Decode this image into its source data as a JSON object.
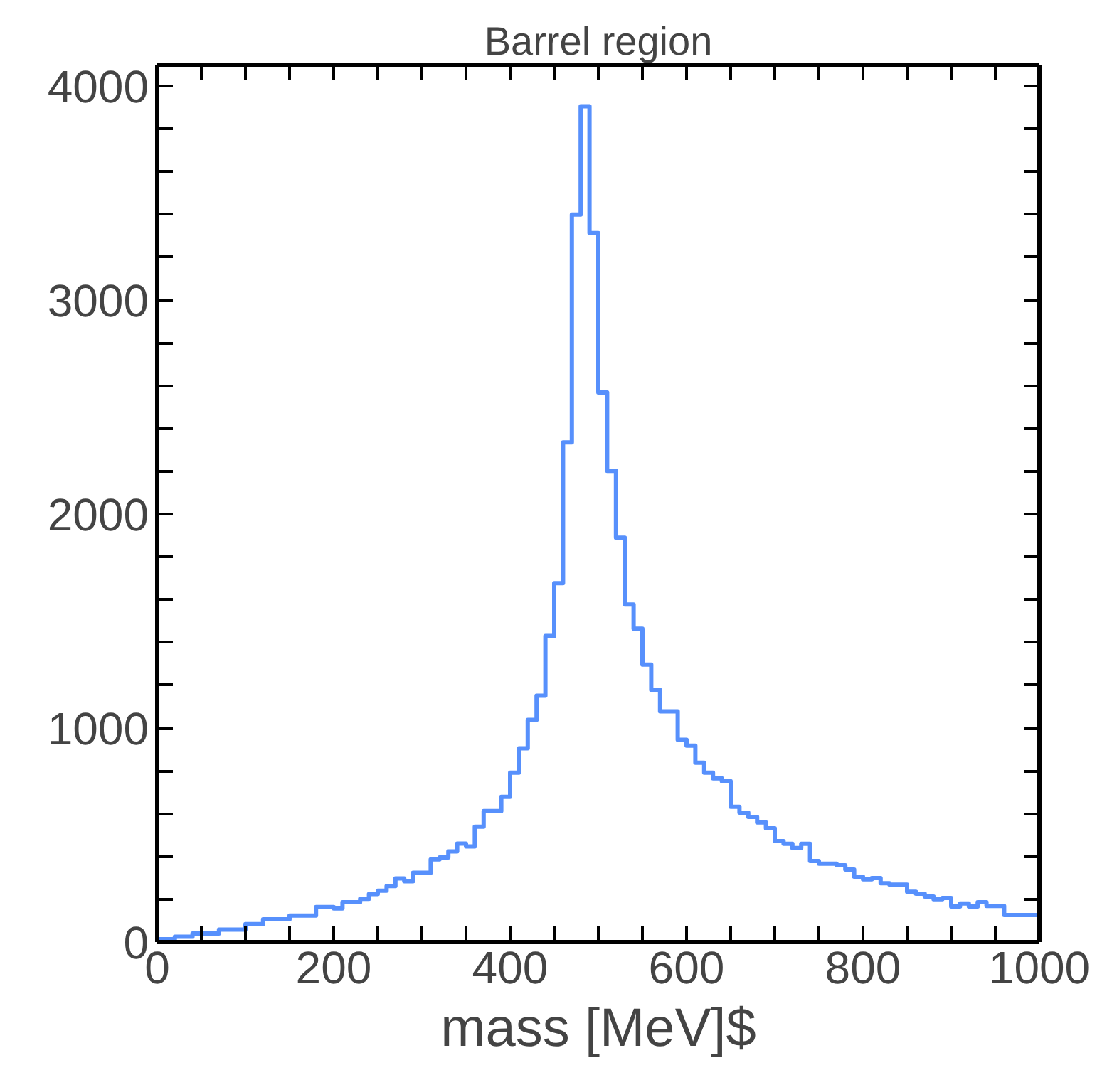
{
  "chart_data": {
    "type": "histogram",
    "title": "Barrel region",
    "xlabel": "mass [MeV]$",
    "bins": [
      0,
      10,
      20,
      30,
      40,
      50,
      60,
      70,
      80,
      90,
      100,
      110,
      120,
      130,
      140,
      150,
      160,
      170,
      180,
      190,
      200,
      210,
      220,
      230,
      240,
      250,
      260,
      270,
      280,
      290,
      300,
      310,
      320,
      330,
      340,
      350,
      360,
      370,
      380,
      390,
      400,
      410,
      420,
      430,
      440,
      450,
      460,
      470,
      480,
      490,
      500,
      510,
      520,
      530,
      540,
      550,
      560,
      570,
      580,
      590,
      600,
      610,
      620,
      630,
      640,
      650,
      660,
      670,
      680,
      690,
      700,
      710,
      720,
      730,
      740,
      750,
      760,
      770,
      780,
      790,
      800,
      810,
      820,
      830,
      840,
      850,
      860,
      870,
      880,
      890,
      900,
      910,
      920,
      930,
      940,
      950,
      960,
      970,
      980,
      990,
      1000
    ],
    "values": [
      13,
      13,
      25,
      25,
      40,
      40,
      40,
      58,
      58,
      58,
      84,
      84,
      106,
      106,
      106,
      124,
      124,
      124,
      164,
      164,
      157,
      186,
      186,
      202,
      224,
      240,
      262,
      297,
      284,
      324,
      324,
      386,
      395,
      424,
      460,
      447,
      539,
      612,
      612,
      679,
      792,
      905,
      1038,
      1151,
      1430,
      1677,
      2335,
      3400,
      3906,
      3313,
      2568,
      2202,
      1890,
      1577,
      1464,
      1297,
      1178,
      1078,
      1078,
      945,
      918,
      838,
      792,
      765,
      752,
      632,
      605,
      585,
      559,
      532,
      472,
      459,
      439,
      459,
      379,
      366,
      366,
      359,
      339,
      306,
      293,
      299,
      275,
      268,
      268,
      235,
      226,
      213,
      200,
      206,
      166,
      180,
      166,
      186,
      169,
      169,
      126,
      126,
      126,
      126
    ],
    "color": "#5790fc",
    "xlim": [
      0,
      1000
    ],
    "ylim": [
      0,
      4100
    ],
    "xticks": [
      0,
      {
        "value": 50,
        "label": null
      },
      {
        "value": 100,
        "label": null
      },
      {
        "value": 150,
        "label": null
      },
      200,
      {
        "value": 250,
        "label": null
      },
      {
        "value": 300,
        "label": null
      },
      {
        "value": 350,
        "label": null
      },
      400,
      {
        "value": 450,
        "label": null
      },
      {
        "value": 500,
        "label": null
      },
      {
        "value": 550,
        "label": null
      },
      600,
      {
        "value": 650,
        "label": null
      },
      {
        "value": 700,
        "label": null
      },
      {
        "value": 750,
        "label": null
      },
      800,
      {
        "value": 850,
        "label": null
      },
      {
        "value": 900,
        "label": null
      },
      {
        "value": 950,
        "label": null
      },
      1000
    ],
    "yticks": [
      0,
      {
        "value": 200,
        "label": null
      },
      {
        "value": 400,
        "label": null
      },
      {
        "value": 600,
        "label": null
      },
      {
        "value": 800,
        "label": null
      },
      1000,
      {
        "value": 1200,
        "label": null
      },
      {
        "value": 1400,
        "label": null
      },
      {
        "value": 1600,
        "label": null
      },
      {
        "value": 1800,
        "label": null
      },
      2000,
      {
        "value": 2200,
        "label": null
      },
      {
        "value": 2400,
        "label": null
      },
      {
        "value": 2600,
        "label": null
      },
      {
        "value": 2800,
        "label": null
      },
      3000,
      {
        "value": 3200,
        "label": null
      },
      {
        "value": 3400,
        "label": null
      },
      {
        "value": 3600,
        "label": null
      },
      {
        "value": 3800,
        "label": null
      },
      4000
    ],
    "grid": false
  }
}
